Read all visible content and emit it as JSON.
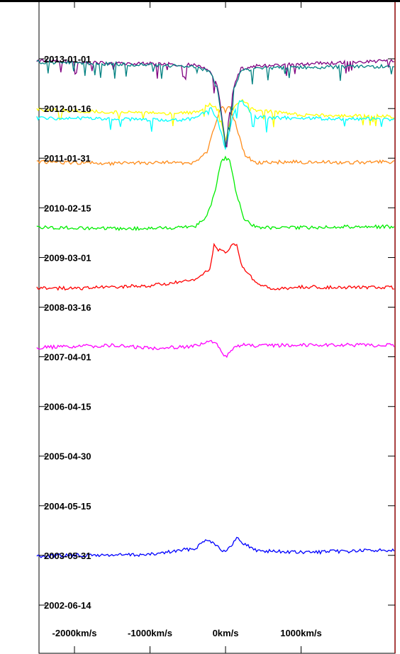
{
  "chart_data": {
    "type": "line",
    "title": "",
    "xlabel": "",
    "ylabel": "",
    "x_range": [
      -2500,
      2250
    ],
    "y_range": [
      "2002-01-01",
      "2013-12-31"
    ],
    "grid": false,
    "legend": "none",
    "x_ticks": [
      {
        "value": -2000,
        "label": "-2000km/s"
      },
      {
        "value": -1000,
        "label": "-1000km/s"
      },
      {
        "value": 0,
        "label": "0km/s"
      },
      {
        "value": 1000,
        "label": "1000km/s"
      }
    ],
    "y_ticks": [
      {
        "value": "2013-01-01",
        "label": "2013-01-01"
      },
      {
        "value": "2012-01-16",
        "label": "2012-01-16"
      },
      {
        "value": "2011-01-31",
        "label": "2011-01-31"
      },
      {
        "value": "2010-02-15",
        "label": "2010-02-15"
      },
      {
        "value": "2009-03-01",
        "label": "2009-03-01"
      },
      {
        "value": "2008-03-16",
        "label": "2008-03-16"
      },
      {
        "value": "2007-04-01",
        "label": "2007-04-01"
      },
      {
        "value": "2006-04-15",
        "label": "2006-04-15"
      },
      {
        "value": "2005-04-30",
        "label": "2005-04-30"
      },
      {
        "value": "2004-05-15",
        "label": "2004-05-15"
      },
      {
        "value": "2003-05-31",
        "label": "2003-05-31"
      },
      {
        "value": "2002-06-14",
        "label": "2002-06-14"
      }
    ],
    "series": [
      {
        "date": "2003-05-31",
        "color": "#0000ff",
        "x": [
          -2500,
          -1000,
          -400,
          -250,
          -150,
          -50,
          0,
          50,
          150,
          250,
          400,
          1000,
          2250
        ],
        "y": [
          "2003-05-28",
          "2003-06-05",
          "2003-07-20",
          "2003-09-25",
          "2003-08-25",
          "2003-07-10",
          "2003-06-20",
          "2003-07-20",
          "2003-10-01",
          "2003-08-20",
          "2003-07-05",
          "2003-06-20",
          "2003-07-10"
        ]
      },
      {
        "date": "2007-06-01",
        "color": "#ff00ff",
        "x": [
          -2500,
          -1500,
          -1000,
          -400,
          -200,
          -100,
          0,
          100,
          200,
          400,
          1000,
          2250
        ],
        "y": [
          "2007-06-05",
          "2007-06-20",
          "2007-06-01",
          "2007-06-15",
          "2007-07-20",
          "2007-06-20",
          "2007-04-01",
          "2007-05-25",
          "2007-06-25",
          "2007-06-15",
          "2007-06-25",
          "2007-06-20"
        ]
      },
      {
        "date": "2008-08-01",
        "color": "#ff0000",
        "x": [
          -2500,
          -2000,
          -1000,
          -400,
          -200,
          -150,
          -100,
          0,
          100,
          150,
          200,
          400,
          600,
          1000,
          2250
        ],
        "y": [
          "2008-08-01",
          "2008-07-25",
          "2008-08-15",
          "2008-09-20",
          "2008-12-20",
          "2009-06-10",
          "2009-04-25",
          "2009-04-01",
          "2009-06-10",
          "2009-05-20",
          "2009-01-15",
          "2008-09-01",
          "2008-07-20",
          "2008-08-05",
          "2008-08-01"
        ]
      },
      {
        "date": "2009-10-01",
        "color": "#00ee00",
        "x": [
          -2500,
          -1500,
          -800,
          -400,
          -250,
          -150,
          -50,
          0,
          50,
          150,
          250,
          400,
          800,
          1500,
          2250
        ],
        "y": [
          "2009-10-01",
          "2009-09-20",
          "2009-09-25",
          "2009-10-10",
          "2009-12-15",
          "2010-05-20",
          "2011-01-25",
          "2011-01-31",
          "2011-01-25",
          "2010-05-10",
          "2009-11-25",
          "2009-10-01",
          "2009-09-25",
          "2009-10-05",
          "2009-10-05"
        ]
      },
      {
        "date": "2011-01-01",
        "color": "#ff8c1a",
        "x": [
          -2500,
          -1500,
          -800,
          -400,
          -250,
          -150,
          -50,
          0,
          50,
          150,
          250,
          400,
          800,
          1500,
          2250
        ],
        "y": [
          "2011-01-05",
          "2010-12-25",
          "2011-01-01",
          "2010-12-28",
          "2011-03-10",
          "2011-09-01",
          "2012-02-10",
          "2011-12-25",
          "2012-02-10",
          "2011-09-01",
          "2011-03-01",
          "2010-12-28",
          "2011-01-05",
          "2011-01-01",
          "2011-01-05"
        ]
      },
      {
        "date": "2011-12-01",
        "color": "#ffff00",
        "x": [
          -2500,
          -1500,
          -800,
          -400,
          -200,
          -100,
          0,
          100,
          200,
          400,
          1000,
          2250
        ],
        "y": [
          "2012-01-10",
          "2011-12-20",
          "2011-12-15",
          "2011-12-20",
          "2012-02-15",
          "2012-01-10",
          "2011-06-01",
          "2012-01-25",
          "2012-03-20",
          "2012-01-05",
          "2011-12-01",
          "2011-11-20"
        ]
      },
      {
        "date": "2011-11-01",
        "color": "#00ffff",
        "x": [
          -2500,
          -1500,
          -800,
          -400,
          -200,
          -100,
          0,
          100,
          200,
          400,
          1000,
          2250
        ],
        "y": [
          "2011-11-10",
          "2011-11-05",
          "2011-10-25",
          "2011-11-05",
          "2012-01-25",
          "2011-10-20",
          "2011-04-01",
          "2011-12-01",
          "2012-03-20",
          "2011-11-15",
          "2011-11-10",
          "2011-11-01"
        ]
      },
      {
        "date": "2012-11-01",
        "color": "#800080",
        "x": [
          -2500,
          -1500,
          -800,
          -400,
          -200,
          -100,
          0,
          100,
          200,
          400,
          1000,
          2250
        ],
        "y": [
          "2012-12-20",
          "2012-12-01",
          "2012-11-25",
          "2012-11-20",
          "2012-10-15",
          "2012-06-01",
          "2011-05-15",
          "2012-06-01",
          "2012-10-20",
          "2012-11-10",
          "2012-11-25",
          "2012-12-20"
        ]
      },
      {
        "date": "2012-10-15",
        "color": "#008080",
        "x": [
          -2500,
          -1500,
          -800,
          -400,
          -200,
          -100,
          0,
          100,
          200,
          400,
          1000,
          2250
        ],
        "y": [
          "2012-12-10",
          "2012-11-25",
          "2012-11-15",
          "2012-11-05",
          "2012-10-01",
          "2012-05-20",
          "2011-04-20",
          "2012-05-15",
          "2012-10-05",
          "2012-10-25",
          "2012-11-01",
          "2012-11-10"
        ]
      }
    ]
  }
}
